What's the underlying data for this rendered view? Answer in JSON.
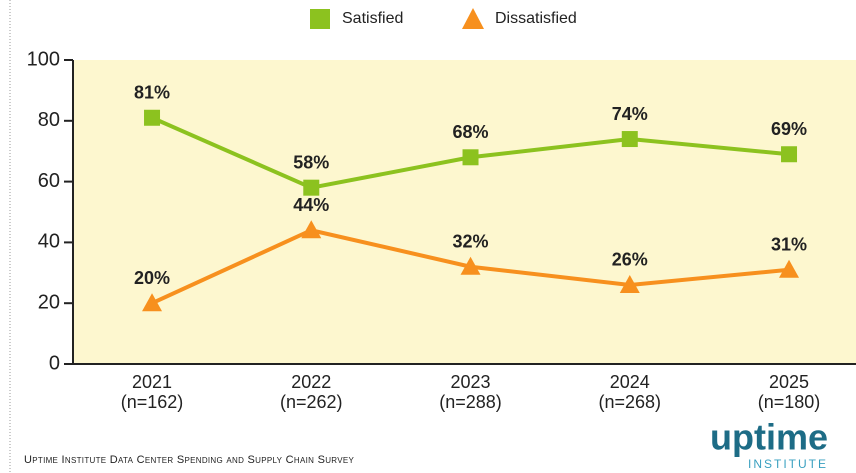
{
  "chart_data": {
    "type": "line",
    "categories": [
      "2021",
      "2022",
      "2023",
      "2024",
      "2025"
    ],
    "sample_sizes": [
      "(n=162)",
      "(n=262)",
      "(n=288)",
      "(n=268)",
      "(n=180)"
    ],
    "series": [
      {
        "name": "Satisfied",
        "color": "#8cc21f",
        "marker": "square",
        "values": [
          81,
          58,
          68,
          74,
          69
        ],
        "value_labels": [
          "81%",
          "58%",
          "68%",
          "74%",
          "69%"
        ]
      },
      {
        "name": "Dissatisfied",
        "color": "#f7901e",
        "marker": "triangle",
        "values": [
          20,
          44,
          32,
          26,
          31
        ],
        "value_labels": [
          "20%",
          "44%",
          "32%",
          "26%",
          "31%"
        ]
      }
    ],
    "ylim": [
      0,
      100
    ],
    "yticks": [
      0,
      20,
      40,
      60,
      80,
      100
    ],
    "legend": "top",
    "source": "Uptime Institute Data Center Spending and Supply Chain Survey",
    "logo": {
      "name": "uptime",
      "subtitle": "INSTITUTE"
    }
  }
}
